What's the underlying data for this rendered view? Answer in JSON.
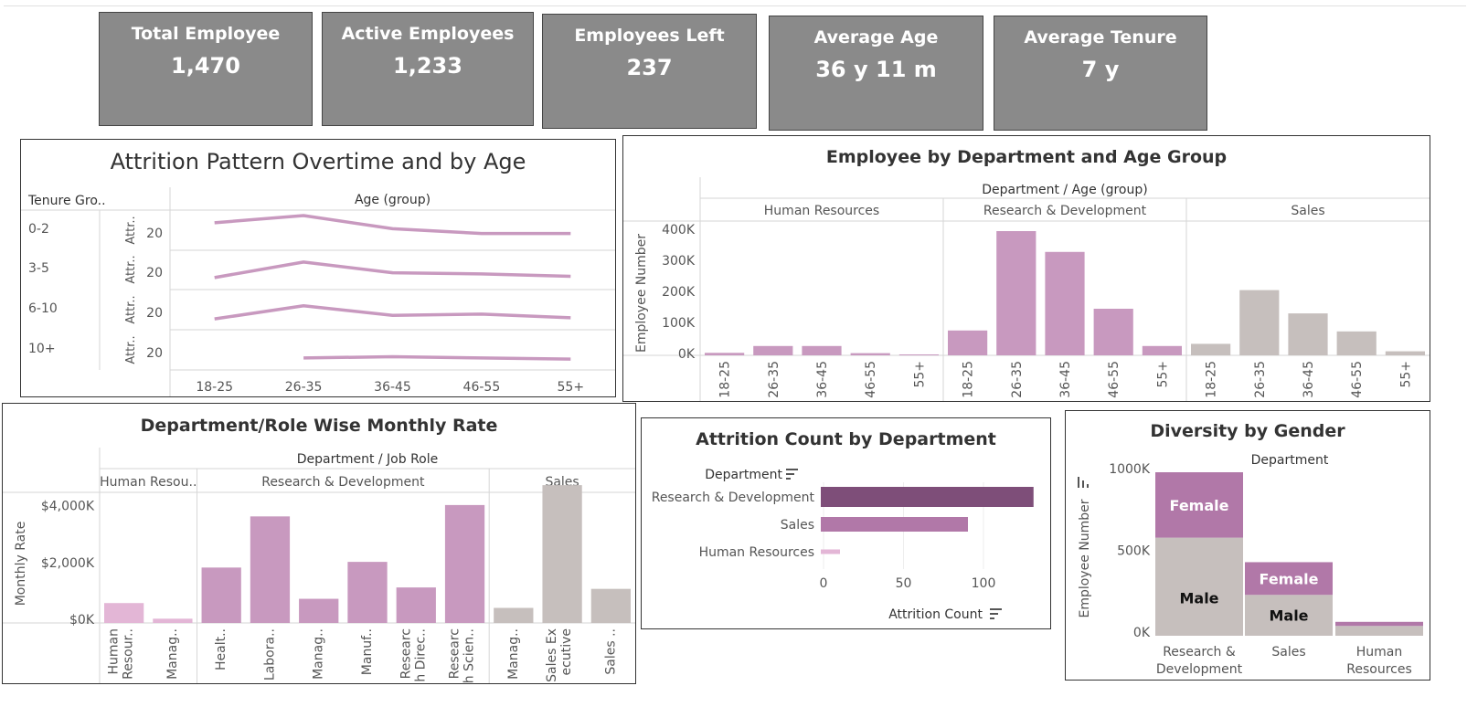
{
  "kpis": [
    {
      "title": "Total Employee",
      "value": "1,470"
    },
    {
      "title": "Active Employees",
      "value": "1,233"
    },
    {
      "title": "Employees Left",
      "value": "237"
    },
    {
      "title": "Average Age",
      "value": "36 y 11 m"
    },
    {
      "title": "Average Tenure",
      "value": "7 y"
    }
  ],
  "colors": {
    "pink": "#c899bf",
    "gray": "#c6bfbd",
    "dark_purple": "#7e4e79",
    "mid_purple": "#b178a8",
    "light_pink": "#e3b6d6",
    "kpi_bg": "#8a8a8a"
  },
  "attrition_pattern": {
    "title": "Attrition Pattern Overtime and by Age",
    "row_header": "Tenure Gro..",
    "col_header": "Age (group)",
    "axis_label": "Attr..",
    "tick": "20",
    "categories": [
      "18-25",
      "26-35",
      "36-45",
      "46-55",
      "55+"
    ],
    "rows": [
      {
        "label": "0-2",
        "values": [
          20,
          26,
          15,
          11,
          11
        ]
      },
      {
        "label": "3-5",
        "values": [
          7,
          20,
          11,
          10,
          8
        ]
      },
      {
        "label": "6-10",
        "values": [
          6,
          17,
          9,
          10,
          7
        ]
      },
      {
        "label": "10+",
        "values": [
          null,
          7,
          8,
          7,
          6
        ]
      }
    ]
  },
  "dept_age": {
    "title": "Employee by Department and Age Group",
    "header": "Department / Age (group)",
    "ylabel": "Employee Number",
    "yticks": [
      "0K",
      "100K",
      "200K",
      "300K",
      "400K"
    ],
    "ymax": 400,
    "age_groups": [
      "18-25",
      "26-35",
      "36-45",
      "46-55",
      "55+"
    ],
    "departments": [
      {
        "name": "Human Resources",
        "values": [
          8,
          30,
          30,
          7,
          3
        ]
      },
      {
        "name": "Research & Development",
        "values": [
          80,
          400,
          333,
          150,
          30
        ]
      },
      {
        "name": "Sales",
        "values": [
          37,
          210,
          135,
          77,
          13
        ]
      }
    ]
  },
  "monthly_rate": {
    "title": "Department/Role Wise Monthly Rate",
    "header": "Department / Job Role",
    "ylabel": "Monthly Rate",
    "yticks": [
      "$0K",
      "$2,000K",
      "$4,000K"
    ],
    "ymax": 4500,
    "groups": [
      {
        "name": "Human Resou..",
        "roles": [
          {
            "label": "Human Resour..",
            "value": 700
          },
          {
            "label": "Manag..",
            "value": 150
          }
        ]
      },
      {
        "name": "Research & Development",
        "roles": [
          {
            "label": "Healt..",
            "value": 1950
          },
          {
            "label": "Labora..",
            "value": 3750
          },
          {
            "label": "Manag..",
            "value": 850
          },
          {
            "label": "Manuf..",
            "value": 2150
          },
          {
            "label": "Researc h Direc..",
            "value": 1250
          },
          {
            "label": "Researc h Scien..",
            "value": 4150
          }
        ]
      },
      {
        "name": "Sales",
        "roles": [
          {
            "label": "Manag..",
            "value": 530
          },
          {
            "label": "Sales Ex ecutive",
            "value": 4850
          },
          {
            "label": "Sales ..",
            "value": 1200
          }
        ]
      }
    ]
  },
  "attrition_dept": {
    "title": "Attrition Count by Department",
    "dim_label": "Department",
    "xlabel": "Attrition Count",
    "xticks": [
      "0",
      "50",
      "100"
    ],
    "items": [
      {
        "label": "Research & Development",
        "value": 133
      },
      {
        "label": "Sales",
        "value": 92
      },
      {
        "label": "Human Resources",
        "value": 12
      }
    ]
  },
  "gender": {
    "title": "Diversity by Gender",
    "header": "Department",
    "ylabel": "Employee Number",
    "yticks": [
      "0K",
      "500K",
      "1000K"
    ],
    "ymax": 1000,
    "female_label": "Female",
    "male_label": "Male",
    "departments": [
      {
        "name": "Research & Development",
        "male": 600,
        "female": 400
      },
      {
        "name": "Sales",
        "male": 250,
        "female": 200
      },
      {
        "name": "Human Resources",
        "male": 60,
        "female": 25
      }
    ]
  }
}
